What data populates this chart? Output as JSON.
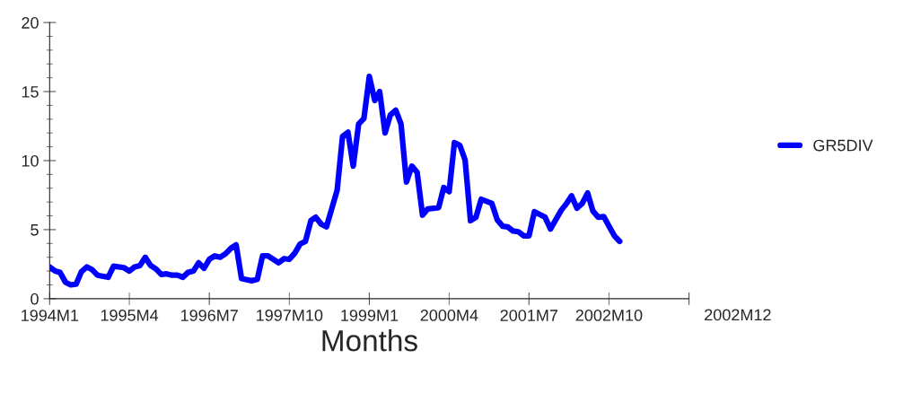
{
  "chart_data": {
    "type": "line",
    "xlabel": "Months",
    "x": [
      "1994-01",
      "1994-02",
      "1994-03",
      "1994-04",
      "1994-05",
      "1994-06",
      "1994-07",
      "1994-08",
      "1994-09",
      "1994-10",
      "1994-12",
      "1995-01",
      "1995-03",
      "1995-04",
      "1995-05",
      "1995-06",
      "1995-07",
      "1995-08",
      "1995-09",
      "1995-10",
      "1995-11",
      "1995-12",
      "1996-01",
      "1996-02",
      "1996-03",
      "1996-04",
      "1996-05",
      "1996-06",
      "1996-07",
      "1996-08",
      "1996-09",
      "1996-10",
      "1996-11",
      "1996-12",
      "1997-01",
      "1997-03",
      "1997-04",
      "1997-05",
      "1997-06",
      "1997-08",
      "1997-09",
      "1997-10",
      "1997-11",
      "1997-12",
      "1998-01",
      "1998-02",
      "1998-03",
      "1998-04",
      "1998-05",
      "1998-06",
      "1998-07",
      "1998-08",
      "1998-09",
      "1998-10",
      "1998-11",
      "1998-12",
      "1999-01",
      "1999-02",
      "1999-03",
      "1999-04",
      "1999-05",
      "1999-06",
      "1999-07",
      "1999-08",
      "1999-09",
      "1999-10",
      "1999-11",
      "1999-12",
      "2000-02",
      "2000-03",
      "2000-04",
      "2000-05",
      "2000-06",
      "2000-07",
      "2000-08",
      "2000-09",
      "2000-10",
      "2000-12",
      "2001-01",
      "2001-02",
      "2001-03",
      "2001-04",
      "2001-05",
      "2001-06",
      "2001-07",
      "2001-08",
      "2001-10",
      "2001-11",
      "2002-01",
      "2002-02",
      "2002-03",
      "2002-04",
      "2002-05",
      "2002-06",
      "2002-07",
      "2002-08",
      "2002-09",
      "2002-10",
      "2002-11",
      "2002-12"
    ],
    "series": [
      {
        "name": "GR5DIV",
        "color": "#0000ff",
        "values": [
          2.3,
          2.0,
          1.9,
          1.2,
          1.0,
          1.05,
          1.95,
          2.3,
          2.1,
          1.7,
          1.55,
          2.35,
          2.25,
          2.0,
          2.3,
          2.4,
          3.0,
          2.4,
          2.15,
          1.75,
          1.8,
          1.7,
          1.7,
          1.55,
          1.9,
          2.0,
          2.6,
          2.2,
          2.85,
          3.1,
          3.0,
          3.25,
          3.65,
          3.9,
          1.45,
          1.3,
          1.4,
          3.1,
          3.1,
          2.6,
          2.9,
          2.85,
          3.3,
          3.95,
          4.15,
          5.65,
          5.9,
          5.4,
          5.2,
          6.55,
          7.85,
          11.75,
          12.05,
          9.6,
          12.65,
          13.05,
          16.1,
          14.35,
          15.0,
          12.0,
          13.3,
          13.65,
          12.65,
          8.45,
          9.6,
          9.15,
          6.05,
          6.5,
          6.6,
          8.05,
          7.75,
          11.3,
          11.1,
          10.05,
          5.65,
          5.9,
          7.2,
          6.9,
          5.7,
          5.25,
          5.2,
          4.9,
          4.85,
          4.55,
          4.55,
          6.3,
          5.9,
          5.05,
          6.4,
          6.9,
          7.45,
          6.55,
          6.9,
          7.65,
          6.35,
          5.9,
          5.95,
          5.25,
          4.55,
          4.15
        ]
      }
    ],
    "xlim": [
      "1994-01",
      "2004-01"
    ],
    "xticks": [
      {
        "value": "1994-01",
        "label": "1994M1"
      },
      {
        "value": "1995-04",
        "label": "1995M4"
      },
      {
        "value": "1996-07",
        "label": "1996M7"
      },
      {
        "value": "1997-10",
        "label": "1997M10"
      },
      {
        "value": "1999-01",
        "label": "1999M1"
      },
      {
        "value": "2000-04",
        "label": "2000M4"
      },
      {
        "value": "2001-07",
        "label": "2001M7"
      },
      {
        "value": "2002-10",
        "label": "2002M10"
      },
      {
        "value": "2004-01",
        "label": null
      }
    ],
    "annotations": [
      "2002M12"
    ],
    "ylim": [
      0,
      20
    ],
    "yticks": [
      0,
      5,
      10,
      15,
      20
    ],
    "grid": false,
    "legend": "right",
    "line_style": "solid",
    "marker": "none"
  }
}
